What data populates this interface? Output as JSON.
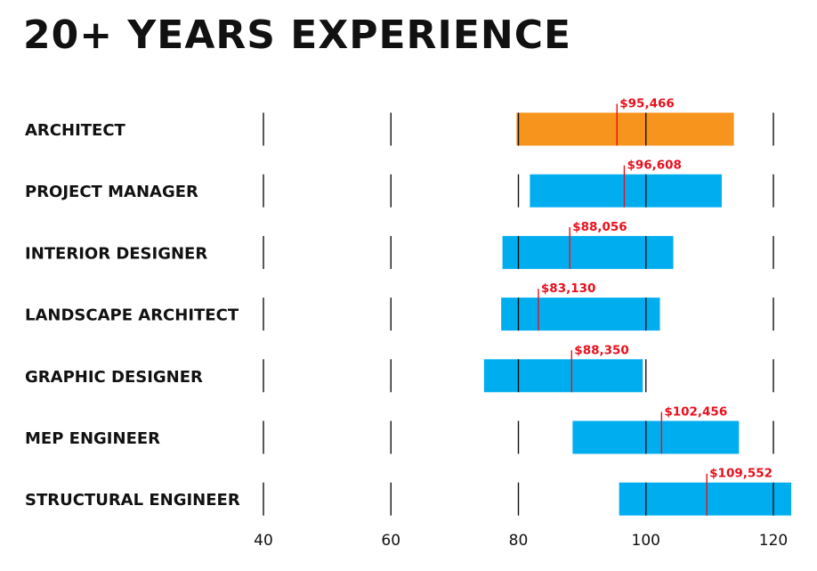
{
  "chart_data": {
    "type": "bar",
    "subtype": "floating-range-with-median",
    "title": "20+ YEARS EXPERIENCE",
    "x_ticks": [
      40,
      60,
      80,
      100,
      120
    ],
    "xlim": [
      40,
      120
    ],
    "grid": true,
    "series": [
      {
        "category": "ARCHITECT",
        "low": 79.7,
        "high": 113.8,
        "median": 95.466,
        "median_label": "$95,466",
        "color": "#f7941d"
      },
      {
        "category": "PROJECT MANAGER",
        "low": 81.8,
        "high": 111.9,
        "median": 96.608,
        "median_label": "$96,608",
        "color": "#00aeef"
      },
      {
        "category": "INTERIOR DESIGNER",
        "low": 77.5,
        "high": 104.3,
        "median": 88.056,
        "median_label": "$88,056",
        "color": "#00aeef"
      },
      {
        "category": "LANDSCAPE ARCHITECT",
        "low": 77.3,
        "high": 102.2,
        "median": 83.13,
        "median_label": "$83,130",
        "color": "#00aeef"
      },
      {
        "category": "GRAPHIC DESIGNER",
        "low": 74.6,
        "high": 99.5,
        "median": 88.35,
        "median_label": "$88,350",
        "color": "#00aeef"
      },
      {
        "category": "MEP ENGINEER",
        "low": 88.5,
        "high": 114.6,
        "median": 102.456,
        "median_label": "$102,456",
        "color": "#00aeef"
      },
      {
        "category": "STRUCTURAL ENGINEER",
        "low": 95.8,
        "high": 122.8,
        "median": 109.552,
        "median_label": "$109,552",
        "color": "#00aeef"
      }
    ],
    "median_color": "#e8101e",
    "gridline_color": "#111111"
  }
}
